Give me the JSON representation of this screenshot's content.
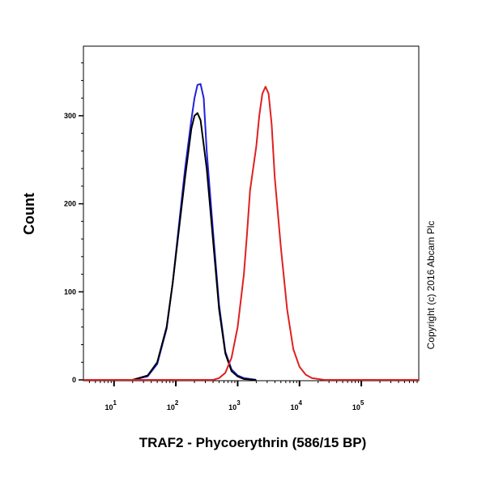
{
  "chart_data": {
    "type": "line",
    "title": "",
    "xlabel": "TRAF2 - Phycoerythrin (586/15 BP)",
    "ylabel": "Count",
    "xscale": "log",
    "xlim": [
      3.2,
      850000
    ],
    "ylim": [
      0,
      379
    ],
    "xticks": [
      {
        "value": 10,
        "base": "10",
        "exp": "1"
      },
      {
        "value": 100,
        "base": "10",
        "exp": "2"
      },
      {
        "value": 1000,
        "base": "10",
        "exp": "3"
      },
      {
        "value": 10000,
        "base": "10",
        "exp": "4"
      },
      {
        "value": 100000,
        "base": "10",
        "exp": "5"
      }
    ],
    "yticks": [
      0,
      100,
      200,
      300
    ],
    "grid": false,
    "annotation": "Copyright (c) 2016 Abcam Plc",
    "series": [
      {
        "color": "#2020e0",
        "points": [
          [
            20,
            0
          ],
          [
            35,
            4
          ],
          [
            50,
            18
          ],
          [
            71,
            58
          ],
          [
            89,
            110
          ],
          [
            112,
            175
          ],
          [
            141,
            240
          ],
          [
            178,
            295
          ],
          [
            200,
            320
          ],
          [
            224,
            335
          ],
          [
            251,
            336
          ],
          [
            282,
            320
          ],
          [
            316,
            260
          ],
          [
            398,
            170
          ],
          [
            501,
            85
          ],
          [
            631,
            32
          ],
          [
            794,
            12
          ],
          [
            1000,
            5
          ],
          [
            1259,
            2
          ],
          [
            1995,
            0
          ]
        ]
      },
      {
        "color": "#000000",
        "points": [
          [
            20,
            0
          ],
          [
            35,
            5
          ],
          [
            50,
            20
          ],
          [
            71,
            60
          ],
          [
            89,
            110
          ],
          [
            112,
            170
          ],
          [
            141,
            230
          ],
          [
            178,
            285
          ],
          [
            200,
            300
          ],
          [
            224,
            303
          ],
          [
            251,
            295
          ],
          [
            316,
            240
          ],
          [
            398,
            160
          ],
          [
            501,
            80
          ],
          [
            631,
            30
          ],
          [
            794,
            10
          ],
          [
            1000,
            4
          ],
          [
            1259,
            1
          ],
          [
            1995,
            0
          ]
        ]
      },
      {
        "color": "#e02020",
        "points": [
          [
            3.2,
            0
          ],
          [
            400,
            0
          ],
          [
            500,
            2
          ],
          [
            631,
            8
          ],
          [
            794,
            25
          ],
          [
            1000,
            60
          ],
          [
            1259,
            120
          ],
          [
            1413,
            165
          ],
          [
            1585,
            215
          ],
          [
            1778,
            240
          ],
          [
            2000,
            265
          ],
          [
            2239,
            300
          ],
          [
            2512,
            325
          ],
          [
            2818,
            333
          ],
          [
            3162,
            325
          ],
          [
            3548,
            290
          ],
          [
            3981,
            230
          ],
          [
            5012,
            150
          ],
          [
            6310,
            80
          ],
          [
            7943,
            35
          ],
          [
            10000,
            15
          ],
          [
            12589,
            6
          ],
          [
            15849,
            2
          ],
          [
            25119,
            0
          ],
          [
            850000,
            0
          ]
        ]
      }
    ]
  }
}
